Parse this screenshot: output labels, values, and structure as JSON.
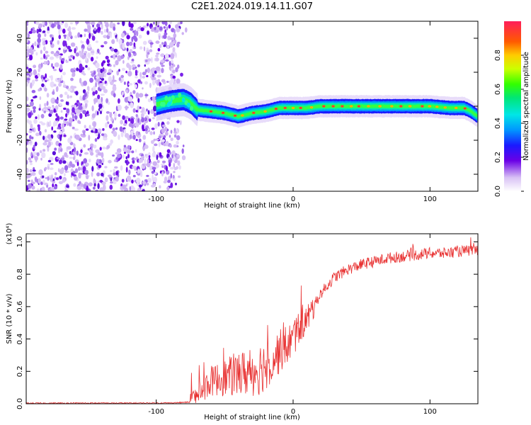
{
  "title": "C2E1.2024.019.14.11.G07",
  "colors": {
    "series": "#e83030",
    "axis": "#000000"
  },
  "chart_data": [
    {
      "type": "heatmap",
      "xlabel": "Height of straight line (km)",
      "ylabel": "Frequency (Hz)",
      "xlim": [
        -195,
        135
      ],
      "ylim": [
        -50,
        50
      ],
      "xticks": [
        -100,
        0,
        100
      ],
      "xtick_labels": [
        "-100",
        "0",
        "100"
      ],
      "yticks": [
        40,
        20,
        0,
        -20,
        -40
      ],
      "ytick_labels": [
        "40",
        "20",
        "0",
        "-20",
        "-40"
      ],
      "colorbar": {
        "label": "Normalized spectral amplitude",
        "ticks": [
          0.0,
          0.2,
          0.4,
          0.6,
          0.8
        ],
        "tick_labels": [
          "0.0",
          "0.2",
          "0.4",
          "0.6",
          "0.8"
        ],
        "colormap": "rainbow"
      },
      "ridge": {
        "x": [
          -100,
          -90,
          -80,
          -75,
          -70,
          -60,
          -50,
          -40,
          -35,
          -30,
          -20,
          -10,
          0,
          10,
          20,
          40,
          60,
          80,
          100,
          115,
          125,
          130,
          135
        ],
        "y": [
          1,
          3,
          4,
          2,
          -2,
          -3,
          -4,
          -6,
          -5,
          -4,
          -3,
          -1,
          -1,
          -1,
          0,
          0,
          0,
          0,
          0,
          -1,
          -1,
          -3,
          -6
        ]
      },
      "noise_region_x": [
        -195,
        -80
      ]
    },
    {
      "type": "line",
      "xlabel": "Height of straight line (km)",
      "ylabel": "SNR (10 * v/v)",
      "y_multiplier": "(x10⁴)",
      "xlim": [
        -195,
        135
      ],
      "ylim": [
        0,
        1.05
      ],
      "xticks": [
        -100,
        0,
        100
      ],
      "xtick_labels": [
        "-100",
        "0",
        "100"
      ],
      "yticks": [
        0.0,
        0.2,
        0.4,
        0.6,
        0.8,
        1.0
      ],
      "ytick_labels": [
        "0.0",
        "0.2",
        "0.4",
        "0.6",
        "0.8",
        "1.0"
      ],
      "series": [
        {
          "x": [
            -195,
            -160,
            -120,
            -90,
            -75,
            -70,
            -65,
            -60,
            -50,
            -40,
            -30,
            -20,
            -10,
            0,
            5,
            10,
            15,
            20,
            30,
            40,
            50,
            60,
            70,
            80,
            90,
            100,
            110,
            120,
            135
          ],
          "y": [
            0.003,
            0.004,
            0.004,
            0.005,
            0.01,
            0.05,
            0.1,
            0.14,
            0.16,
            0.18,
            0.2,
            0.24,
            0.32,
            0.4,
            0.48,
            0.52,
            0.6,
            0.68,
            0.78,
            0.83,
            0.86,
            0.88,
            0.9,
            0.91,
            0.92,
            0.93,
            0.93,
            0.94,
            0.95
          ]
        }
      ]
    }
  ]
}
